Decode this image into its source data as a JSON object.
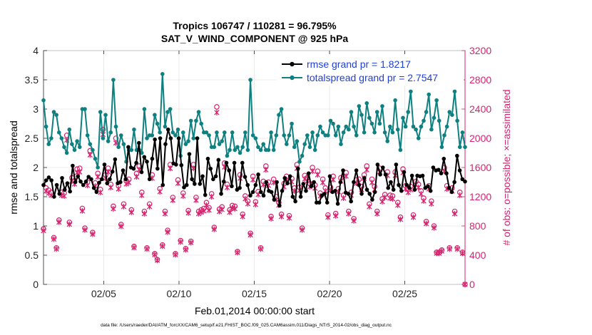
{
  "chart_data": {
    "type": "line",
    "title_line1": "Tropics 106747 / 110281 = 96.795%",
    "title_line2": "SAT_V_WIND_COMPONENT @ 925 hPa",
    "xlabel": "Feb.01,2014 00:00:00 start",
    "ylabel_left": "rmse and totalspread",
    "ylabel_right": "# of obs: o=possible; ×=assimilated",
    "footnote": "data file: /Users/raeder/DAI/ATM_forcXX/CAM6_setup/f.e21.FHIST_BGC.f09_025.CAM6assim.011/Diags_NTrS_2014-02/obs_diag_output.nc",
    "xlim": [
      1.0,
      29.0
    ],
    "ylim_left": [
      0,
      4
    ],
    "ylim_right": [
      0,
      3200
    ],
    "x_ticks": [
      5,
      10,
      15,
      20,
      25
    ],
    "x_tick_labels": [
      "02/05",
      "02/10",
      "02/15",
      "02/20",
      "02/25"
    ],
    "y_left_ticks": [
      0,
      0.5,
      1,
      1.5,
      2,
      2.5,
      3,
      3.5,
      4
    ],
    "y_left_tick_labels": [
      "0",
      "0.5",
      "1",
      "1.5",
      "2",
      "2.5",
      "3",
      "3.5",
      "4"
    ],
    "y_right_ticks": [
      0,
      400,
      800,
      1200,
      1600,
      2000,
      2400,
      2800,
      3200
    ],
    "y_right_tick_labels": [
      "0",
      "400",
      "800",
      "1200",
      "1600",
      "2000",
      "2400",
      "2800",
      "3200"
    ],
    "legend": [
      "rmse grand pr = 1.8217",
      "totalspread grand pr = 2.7547"
    ],
    "legend_position": "top-right",
    "colors": {
      "rmse": "#000000",
      "spread": "#0f8080",
      "obs": "#d6246e"
    },
    "series": [
      {
        "name": "rmse",
        "axis": "left",
        "values": [
          1.7,
          1.78,
          1.83,
          1.78,
          1.5,
          1.7,
          1.55,
          1.82,
          1.62,
          1.73,
          1.59,
          2.03,
          1.75,
          1.85,
          1.76,
          1.7,
          1.76,
          1.84,
          1.8,
          1.65,
          1.58,
          1.74,
          1.8,
          2.05,
          1.73,
          1.8,
          1.93,
          2.14,
          1.73,
          1.75,
          1.95,
          1.8,
          2.35,
          2.0,
          1.98,
          2.08,
          2.42,
          1.92,
          2.18,
          2.1,
          1.8,
          2.15,
          2.48,
          1.98,
          2.5,
          1.7,
          2.4,
          2.65,
          2.5,
          2.07,
          2.05,
          2.5,
          2.04,
          1.66,
          1.7,
          2.23,
          1.8,
          1.72,
          2.5,
          1.72,
          1.85,
          1.53,
          2.15,
          1.98,
          1.8,
          1.85,
          2.13,
          1.55,
          1.76,
          2.08,
          1.95,
          1.68,
          2.08,
          1.62,
          1.65,
          2.08,
          1.84,
          1.7,
          1.52,
          1.58,
          1.7,
          1.88,
          1.58,
          1.52,
          1.75,
          1.6,
          1.58,
          1.45,
          1.75,
          1.35,
          1.6,
          1.82,
          1.73,
          1.85,
          1.5,
          1.42,
          1.98,
          1.5,
          1.72,
          1.6,
          1.9,
          1.68,
          1.75,
          1.4,
          1.4,
          1.52,
          1.55,
          1.4,
          1.85,
          1.58,
          1.6,
          1.38,
          1.75,
          1.95,
          1.57,
          1.55,
          1.42,
          1.75,
          1.95,
          1.7,
          1.55,
          1.82,
          1.62,
          1.55,
          1.45,
          1.58,
          2.05,
          1.88,
          2.0,
          1.88,
          1.65,
          1.75,
          1.62,
          2.05,
          1.7,
          1.6,
          1.92,
          1.7,
          1.65,
          1.86,
          1.62,
          1.86,
          1.85,
          1.86,
          1.65,
          1.68,
          1.6,
          2.0,
          1.95,
          1.96,
          1.9,
          2.15,
          1.9,
          1.65,
          1.58,
          1.75,
          2.2,
          1.95,
          1.8,
          1.76
        ]
      },
      {
        "name": "totalspread",
        "axis": "left",
        "values": [
          3.15,
          2.7,
          2.4,
          2.5,
          2.95,
          2.9,
          2.6,
          2.5,
          2.35,
          2.25,
          2.65,
          2.4,
          2.3,
          2.45,
          2.35,
          3.0,
          3.0,
          2.55,
          2.4,
          2.3,
          2.15,
          2.0,
          2.95,
          2.5,
          2.9,
          2.45,
          2.6,
          3.5,
          2.7,
          2.35,
          2.55,
          2.4,
          2.1,
          2.3,
          2.3,
          2.65,
          2.3,
          2.3,
          2.25,
          3.0,
          2.5,
          2.55,
          2.55,
          2.9,
          2.75,
          2.6,
          3.6,
          2.7,
          2.95,
          3.0,
          2.6,
          2.55,
          2.65,
          2.2,
          2.6,
          2.4,
          2.45,
          2.8,
          2.5,
          2.8,
          2.95,
          2.75,
          2.6,
          2.6,
          2.55,
          2.35,
          2.35,
          2.6,
          2.4,
          2.45,
          2.6,
          2.2,
          2.3,
          2.6,
          2.3,
          2.35,
          2.25,
          2.35,
          2.6,
          2.3,
          3.5,
          2.55,
          2.5,
          2.35,
          2.3,
          2.4,
          2.3,
          2.3,
          2.6,
          2.3,
          2.55,
          2.9,
          3.0,
          2.55,
          2.4,
          2.55,
          2.75,
          2.35,
          2.45,
          2.1,
          2.2,
          2.4,
          2.55,
          2.35,
          2.6,
          2.3,
          2.55,
          2.7,
          2.6,
          2.55,
          2.55,
          2.8,
          2.75,
          2.55,
          2.7,
          2.4,
          2.6,
          2.7,
          2.65,
          2.95,
          2.7,
          2.55,
          3.05,
          2.9,
          2.6,
          3.1,
          2.85,
          2.75,
          2.6,
          2.95,
          2.75,
          3.05,
          2.6,
          2.45,
          2.7,
          2.6,
          3.15,
          2.65,
          2.3,
          2.85,
          2.7,
          2.95,
          3.3,
          2.7,
          2.65,
          2.5,
          2.7,
          2.8,
          2.95,
          3.25,
          2.65,
          2.85,
          3.15,
          2.8,
          2.35,
          2.55,
          2.7,
          2.95,
          2.9,
          3.3,
          2.8,
          2.35,
          2.6,
          2.35
        ]
      },
      {
        "name": "obs_possible",
        "axis": "right",
        "values": [
          760,
          1320,
          1290,
          1260,
          640,
          500,
          880,
          1260,
          1250,
          2040,
          850,
          1460,
          1420,
          1580,
          1590,
          1040,
          770,
          1400,
          1830,
          710,
          1390,
          1520,
          1300,
          2120,
          1500,
          1590,
          1370,
          1070,
          2000,
          1350,
          820,
          1100,
          1420,
          1440,
          1020,
          520,
          1520,
          1620,
          1260,
          1000,
          500,
          1100,
          1500,
          420,
          340,
          1310,
          540,
          1000,
          740,
          1640,
          1190,
          420,
          1430,
          600,
          1250,
          490,
          1010,
          590,
          1640,
          1190,
          1000,
          1020,
          1040,
          1120,
          1050,
          1240,
          780,
          2430,
          1030,
          1060,
          1660,
          1370,
          1020,
          1080,
          1070,
          450,
          1500,
          960,
          1210,
          1140,
          700,
          1480,
          1130,
          1270,
          500,
          1410,
          1620,
          1400,
          930,
          1440,
          1200,
          1120,
          960,
          1380,
          1480,
          940,
          1450,
          1320,
          1640,
          1330,
          770,
          1490,
          1460,
          1380,
          1600,
          1360,
          1550,
          1250,
          1440,
          1320,
          950,
          1330,
          1480,
          970,
          1310,
          1460,
          1220,
          1530,
          1000,
          1260,
          900,
          1430,
          1440,
          1340,
          1500,
          1620,
          1100,
          1440,
          1340,
          1000,
          1590,
          1170,
          1230,
          1540,
          1220,
          1210,
          1540,
          1120,
          920,
          1580,
          1350,
          1300,
          1340,
          950,
          1410,
          1370,
          1280,
          1180,
          860,
          1350,
          1140,
          800,
          440,
          440,
          470,
          1600,
          1350,
          500,
          1320,
          1000,
          500,
          1260,
          440,
          0
        ]
      }
    ]
  }
}
